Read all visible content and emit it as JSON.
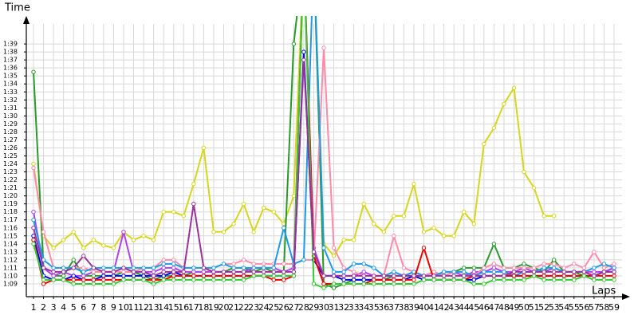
{
  "chart_data": {
    "type": "line",
    "y_label": "Time",
    "x_label": "Laps",
    "grid": true,
    "categories": [
      "1",
      "2",
      "3",
      "4",
      "5",
      "6",
      "7",
      "8",
      "9",
      "10",
      "11",
      "12",
      "13",
      "14",
      "15",
      "16",
      "17",
      "18",
      "19",
      "20",
      "21",
      "22",
      "23",
      "24",
      "25",
      "26",
      "27",
      "28",
      "29",
      "30",
      "31",
      "32",
      "33",
      "34",
      "35",
      "36",
      "37",
      "38",
      "39",
      "40",
      "41",
      "42",
      "43",
      "44",
      "45",
      "46",
      "47",
      "48",
      "49",
      "50",
      "51",
      "52",
      "53",
      "54",
      "55",
      "56",
      "57",
      "58",
      "59"
    ],
    "ylim": [
      67.4,
      102.5
    ],
    "yticks": [
      {
        "value": 69,
        "label": "1:09"
      },
      {
        "value": 70,
        "label": "1:10"
      },
      {
        "value": 71,
        "label": "1:11"
      },
      {
        "value": 72,
        "label": "1:12"
      },
      {
        "value": 73,
        "label": "1:13"
      },
      {
        "value": 74,
        "label": "1:14"
      },
      {
        "value": 75,
        "label": "1:15"
      },
      {
        "value": 76,
        "label": "1:16"
      },
      {
        "value": 77,
        "label": "1:17"
      },
      {
        "value": 78,
        "label": "1:18"
      },
      {
        "value": 79,
        "label": "1:19"
      },
      {
        "value": 80,
        "label": "1:20"
      },
      {
        "value": 81,
        "label": "1:21"
      },
      {
        "value": 82,
        "label": "1:22"
      },
      {
        "value": 83,
        "label": "1:23"
      },
      {
        "value": 84,
        "label": "1:24"
      },
      {
        "value": 85,
        "label": "1:25"
      },
      {
        "value": 86,
        "label": "1:26"
      },
      {
        "value": 87,
        "label": "1:27"
      },
      {
        "value": 88,
        "label": "1:28"
      },
      {
        "value": 89,
        "label": "1:29"
      },
      {
        "value": 90,
        "label": "1:30"
      },
      {
        "value": 91,
        "label": "1:31"
      },
      {
        "value": 92,
        "label": "1:32"
      },
      {
        "value": 93,
        "label": "1:33"
      },
      {
        "value": 94,
        "label": "1:34"
      },
      {
        "value": 95,
        "label": "1:35"
      },
      {
        "value": 96,
        "label": "1:36"
      },
      {
        "value": 97,
        "label": "1:37"
      },
      {
        "value": 98,
        "label": "1:38"
      },
      {
        "value": 99,
        "label": "1:39"
      }
    ],
    "series": [
      {
        "color": "#d6d61c",
        "values": [
          84,
          75,
          73.5,
          74.5,
          75.5,
          73.5,
          74.5,
          73.8,
          73.5,
          75.5,
          74.5,
          75,
          74.5,
          78,
          78,
          77.5,
          81.5,
          86,
          75.5,
          75.5,
          76.5,
          79,
          75.5,
          78.5,
          78,
          76.5,
          80,
          110,
          110,
          74,
          72.5,
          74.5,
          74.5,
          79,
          76.5,
          75.5,
          77.5,
          77.5,
          81.5,
          75.5,
          76,
          75,
          75,
          78,
          76.5,
          86.5,
          88.5,
          91.5,
          93.5,
          83,
          81,
          77.5,
          77.5,
          null,
          null,
          null,
          null,
          null,
          null
        ]
      },
      {
        "color": "#2a9a2a",
        "values": [
          95.5,
          71,
          70,
          70,
          72,
          70,
          70,
          70,
          70,
          70.5,
          70.5,
          70,
          69.5,
          70,
          70,
          70,
          70.5,
          70.5,
          70.5,
          70.5,
          71,
          71,
          70.5,
          71,
          70.5,
          70.5,
          99,
          110,
          110,
          69,
          68.5,
          69,
          69.5,
          69.5,
          69.5,
          69.5,
          70,
          70,
          70,
          70,
          70.5,
          70,
          70.5,
          71,
          71,
          71,
          74,
          71,
          71,
          71.5,
          71,
          70.5,
          72,
          70.5,
          70.5,
          70,
          70,
          70.5,
          71
        ]
      },
      {
        "color": "#b040f0",
        "values": [
          78,
          71,
          70,
          70.5,
          70,
          70,
          70.5,
          70.5,
          70.5,
          75.5,
          70.5,
          70.5,
          70.5,
          71,
          71,
          70.5,
          70.5,
          70.5,
          70.5,
          70.5,
          70.5,
          70.5,
          71,
          71,
          71,
          70.5,
          71,
          110,
          73.5,
          70,
          70,
          70,
          70,
          70.5,
          70,
          70,
          70,
          70,
          70.5,
          70,
          70,
          70.5,
          70.5,
          70,
          70.5,
          70.5,
          71,
          70.5,
          70.5,
          71,
          70.5,
          70.5,
          71,
          70.5,
          70.5,
          70.5,
          70.5,
          70.5,
          71
        ]
      },
      {
        "color": "#ff8aaa",
        "values": [
          83.5,
          75.5,
          71,
          71,
          71,
          71,
          70.5,
          70.5,
          70.5,
          70.5,
          70.5,
          71,
          71,
          72,
          72,
          71,
          71,
          71,
          71,
          71.5,
          71.5,
          72,
          71.5,
          71.5,
          71.5,
          71.5,
          71.5,
          72,
          72,
          98.5,
          73.5,
          71,
          70.5,
          70,
          70,
          70,
          75,
          71,
          70.5,
          70,
          70.5,
          70,
          70.5,
          70.5,
          70,
          71,
          71.5,
          71,
          71,
          71,
          71,
          71.5,
          71.5,
          71,
          71.5,
          71,
          73,
          71,
          71.5
        ]
      },
      {
        "color": "#1e9ae6",
        "values": [
          77,
          72,
          71,
          71,
          71,
          70.5,
          71,
          71,
          71,
          71,
          71,
          71,
          71,
          71.5,
          71.5,
          71,
          71,
          71,
          71,
          71.5,
          71,
          71,
          71,
          71,
          71,
          76,
          71.5,
          72,
          110,
          73.5,
          70.5,
          70.5,
          71.5,
          71.5,
          71,
          70,
          70.5,
          70,
          70.5,
          70,
          70,
          70.5,
          70.5,
          70.5,
          70,
          70.5,
          70.5,
          70.5,
          70,
          70.5,
          70.5,
          71,
          71,
          70.5,
          70.5,
          70.5,
          71,
          71.5,
          71
        ]
      },
      {
        "color": "#0000ee",
        "values": [
          75,
          70,
          69.5,
          69.5,
          70,
          69.5,
          69.5,
          70,
          70,
          70,
          70,
          70,
          70,
          70,
          70.5,
          70,
          70,
          70,
          70,
          70,
          70,
          70,
          70,
          70,
          70,
          70,
          70,
          98,
          72,
          70,
          70,
          69.5,
          69.5,
          69.5,
          69.5,
          69.5,
          69.5,
          69.5,
          70,
          69.5,
          69.5,
          69.5,
          69.5,
          69.5,
          69.5,
          70,
          70,
          70,
          70,
          70,
          70,
          70,
          70,
          70,
          70,
          70,
          70,
          70.5,
          70.5
        ]
      },
      {
        "color": "#ee0000",
        "values": [
          74.5,
          69,
          69.5,
          69.5,
          69.5,
          69.5,
          69.5,
          69.5,
          69.5,
          69.5,
          69.5,
          69.5,
          69.5,
          69.5,
          70,
          70,
          70,
          70,
          70,
          70,
          70,
          70,
          70,
          70,
          69.5,
          69.5,
          70,
          110,
          72.5,
          69,
          69,
          69,
          69,
          69,
          69.5,
          69.5,
          69.5,
          69.5,
          69.5,
          73.5,
          69.5,
          69.5,
          69.5,
          69.5,
          70,
          70,
          70,
          70,
          70,
          70,
          70,
          70,
          70,
          70,
          70,
          70,
          70,
          70,
          70
        ]
      },
      {
        "color": "#33cc33",
        "values": [
          74,
          69.5,
          69.5,
          69.5,
          69,
          69,
          69,
          69,
          69,
          69.5,
          69.5,
          69.5,
          69,
          69.5,
          69.5,
          69.5,
          69.5,
          69.5,
          69.5,
          69.5,
          69.5,
          69.5,
          70,
          70,
          70,
          70,
          70,
          110,
          69,
          68.5,
          69,
          69,
          69,
          69,
          69,
          69,
          69,
          69,
          69,
          69.5,
          69.5,
          69.5,
          69.5,
          69.5,
          69,
          69,
          69.5,
          69.5,
          69.5,
          69.5,
          70,
          69.5,
          69.5,
          69.5,
          69.5,
          70,
          69.5,
          69.5,
          69.5
        ]
      },
      {
        "color": "#993399",
        "values": [
          76,
          71,
          70.5,
          70.5,
          71,
          72.5,
          71,
          70.5,
          70.5,
          71,
          70.5,
          70.5,
          70,
          70.5,
          70.5,
          70.5,
          79,
          71,
          70.5,
          70.5,
          70.5,
          70.5,
          70.5,
          70.5,
          70.5,
          70.5,
          70.5,
          97,
          73,
          70,
          70,
          70,
          70,
          70,
          70,
          70,
          70,
          70,
          70,
          70,
          70,
          70,
          70,
          70,
          70,
          70,
          70,
          70,
          70.5,
          70.5,
          70.5,
          70.5,
          70.5,
          70.5,
          70.5,
          70.5,
          70,
          70.5,
          70.5
        ]
      }
    ]
  }
}
